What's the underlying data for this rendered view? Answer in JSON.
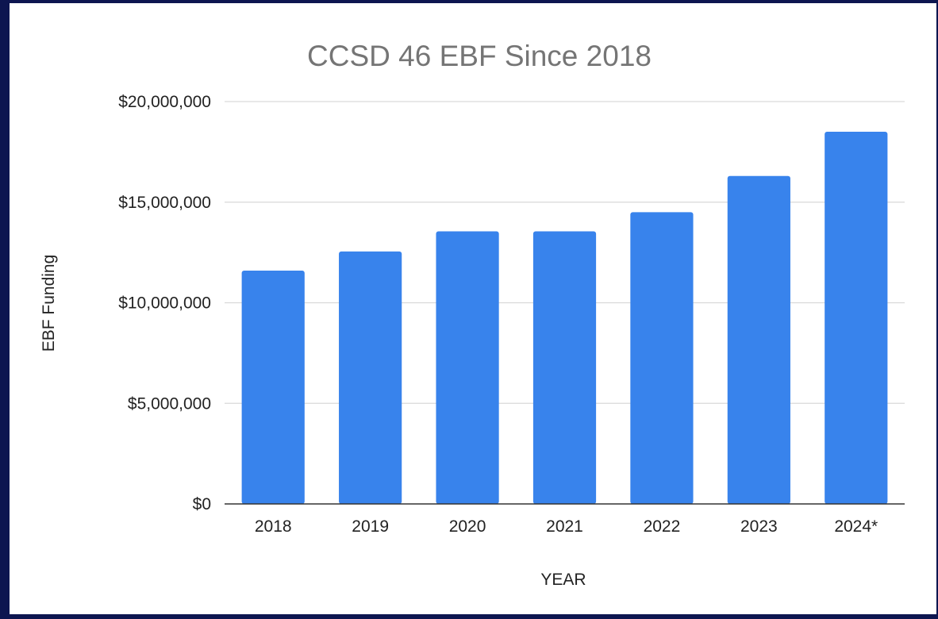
{
  "chart_data": {
    "type": "bar",
    "title": "CCSD 46 EBF Since 2018",
    "xlabel": "YEAR",
    "ylabel": "EBF Funding",
    "categories": [
      "2018",
      "2019",
      "2020",
      "2021",
      "2022",
      "2023",
      "2024*"
    ],
    "values": [
      11600000,
      12550000,
      13550000,
      13550000,
      14500000,
      16300000,
      18500000
    ],
    "ylim": [
      0,
      20000000
    ],
    "yticks": [
      0,
      5000000,
      10000000,
      15000000,
      20000000
    ],
    "ytick_labels": [
      "$0",
      "$5,000,000",
      "$10,000,000",
      "$15,000,000",
      "$20,000,000"
    ],
    "grid": true,
    "legend": "none",
    "bar_color": "#3883ec",
    "frame_color": "#0d1650"
  }
}
